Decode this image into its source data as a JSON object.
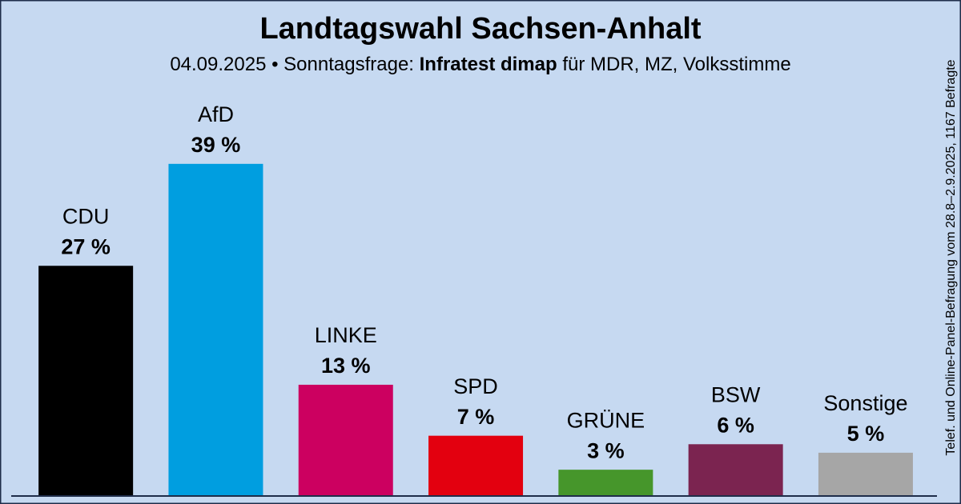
{
  "chart_data": {
    "type": "bar",
    "title": "Landtagswahl Sachsen-Anhalt",
    "subtitle": {
      "lead": "04.09.2025 • Sonntagsfrage:",
      "pollster": "Infratest dimap",
      "tail": "für MDR, MZ, Volksstimme"
    },
    "side_note": "Telef. und Online-Panel-Befragung vom 28.8–2.9.2025, 1167 Befragte",
    "categories": [
      "CDU",
      "AfD",
      "LINKE",
      "SPD",
      "GRÜNE",
      "BSW",
      "Sonstige"
    ],
    "values": [
      27,
      39,
      13,
      7,
      3,
      6,
      5
    ],
    "value_labels": [
      "27 %",
      "39 %",
      "13 %",
      "7 %",
      "3 %",
      "6 %",
      "5 %"
    ],
    "colors": [
      "#000000",
      "#009ee0",
      "#cc0060",
      "#e3000f",
      "#46962b",
      "#7b2450",
      "#a6a6a6"
    ]
  }
}
